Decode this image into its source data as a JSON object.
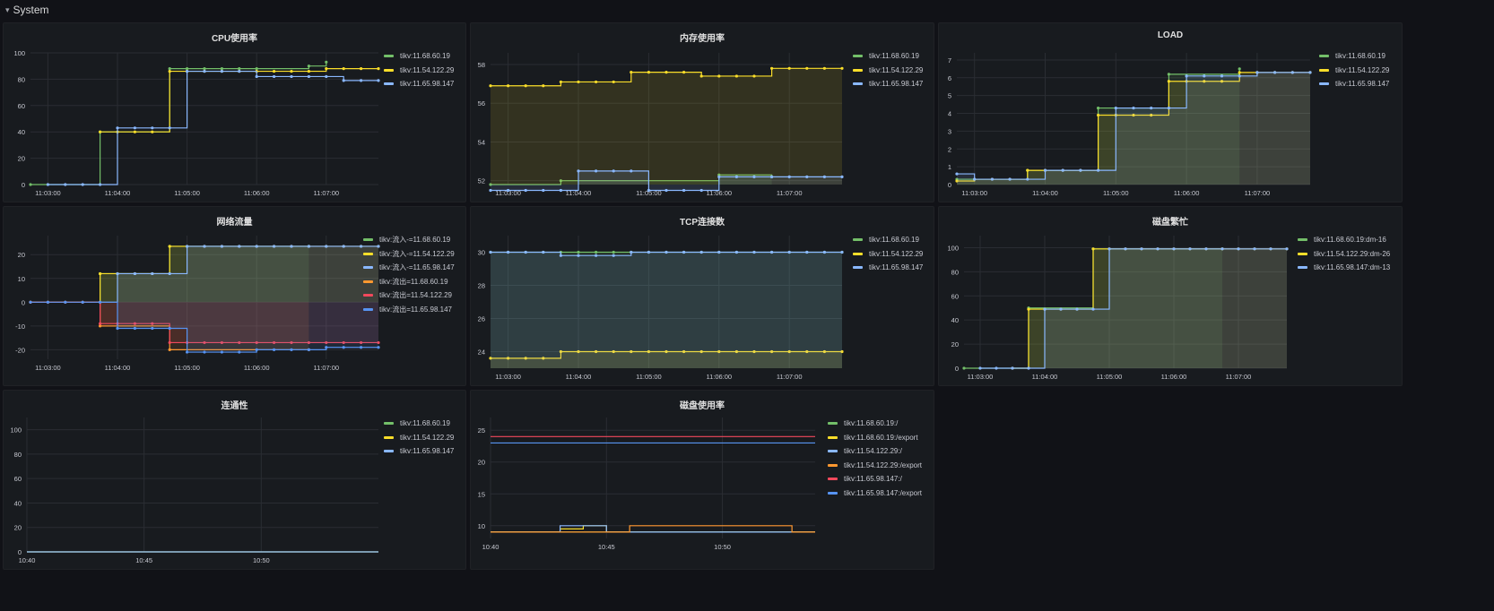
{
  "row": {
    "title": "System",
    "collapse_icon": "chevron-down-icon"
  },
  "colors": {
    "background": "#111217",
    "panel": "#181b1f",
    "grid": "#2a2d33",
    "green": "#73bf69",
    "yellow": "#fade2a",
    "blue": "#8ab8ff",
    "orange": "#ff9830",
    "red": "#f2495c",
    "blue2": "#5794f2"
  },
  "chart_data": [
    {
      "id": "cpu",
      "type": "line",
      "title": "CPU使用率",
      "x": [
        "11:02:45",
        "11:03:00",
        "11:03:15",
        "11:03:30",
        "11:03:45",
        "11:04:00",
        "11:04:15",
        "11:04:30",
        "11:04:45",
        "11:05:00",
        "11:05:15",
        "11:05:30",
        "11:05:45",
        "11:06:00",
        "11:06:15",
        "11:06:30",
        "11:06:45",
        "11:07:00",
        "11:07:15",
        "11:07:30",
        "11:07:45"
      ],
      "xticks": [
        "11:03:00",
        "11:04:00",
        "11:05:00",
        "11:06:00",
        "11:07:00"
      ],
      "ylim": [
        0,
        100
      ],
      "yticks": [
        0,
        20,
        40,
        60,
        80,
        100
      ],
      "series": [
        {
          "name": "tikv:11.68.60.19",
          "color": "green",
          "values": [
            0,
            null,
            null,
            null,
            40,
            null,
            null,
            null,
            88,
            88,
            88,
            88,
            88,
            88,
            null,
            null,
            90,
            93,
            null,
            null,
            null
          ]
        },
        {
          "name": "tikv:11.54.122.29",
          "color": "yellow",
          "values": [
            null,
            null,
            null,
            null,
            40,
            40,
            40,
            40,
            86,
            86,
            86,
            86,
            86,
            86,
            86,
            86,
            86,
            88,
            88,
            88,
            88
          ]
        },
        {
          "name": "tikv:11.65.98.147",
          "color": "blue",
          "values": [
            null,
            0,
            0,
            0,
            0,
            43,
            43,
            43,
            43,
            86,
            86,
            86,
            86,
            82,
            82,
            82,
            82,
            82,
            79,
            79,
            79
          ]
        }
      ],
      "fill": false
    },
    {
      "id": "mem",
      "type": "area",
      "title": "内存使用率",
      "x": [
        "11:02:45",
        "11:03:00",
        "11:03:15",
        "11:03:30",
        "11:03:45",
        "11:04:00",
        "11:04:15",
        "11:04:30",
        "11:04:45",
        "11:05:00",
        "11:05:15",
        "11:05:30",
        "11:05:45",
        "11:06:00",
        "11:06:15",
        "11:06:30",
        "11:06:45",
        "11:07:00",
        "11:07:15",
        "11:07:30",
        "11:07:45"
      ],
      "xticks": [
        "11:03:00",
        "11:04:00",
        "11:05:00",
        "11:06:00",
        "11:07:00"
      ],
      "ylim": [
        51.8,
        58.6
      ],
      "yticks": [
        52,
        54,
        56,
        58
      ],
      "series": [
        {
          "name": "tikv:11.68.60.19",
          "color": "green",
          "values": [
            51.8,
            null,
            null,
            null,
            52,
            null,
            null,
            null,
            null,
            null,
            null,
            null,
            null,
            52.3,
            null,
            null,
            52.2,
            null,
            null,
            null,
            null
          ]
        },
        {
          "name": "tikv:11.54.122.29",
          "color": "yellow",
          "values": [
            56.9,
            56.9,
            56.9,
            56.9,
            57.1,
            57.1,
            57.1,
            57.1,
            57.6,
            57.6,
            57.6,
            57.6,
            57.4,
            57.4,
            57.4,
            57.4,
            57.8,
            57.8,
            57.8,
            57.8,
            57.8
          ]
        },
        {
          "name": "tikv:11.65.98.147",
          "color": "blue",
          "values": [
            51.5,
            51.5,
            51.5,
            51.5,
            51.5,
            52.5,
            52.5,
            52.5,
            52.5,
            51.5,
            51.5,
            51.5,
            51.5,
            52.2,
            52.2,
            52.2,
            52.2,
            52.2,
            52.2,
            52.2,
            52.2
          ]
        }
      ],
      "fill": true
    },
    {
      "id": "load",
      "type": "area",
      "title": "LOAD",
      "x": [
        "11:02:45",
        "11:03:00",
        "11:03:15",
        "11:03:30",
        "11:03:45",
        "11:04:00",
        "11:04:15",
        "11:04:30",
        "11:04:45",
        "11:05:00",
        "11:05:15",
        "11:05:30",
        "11:05:45",
        "11:06:00",
        "11:06:15",
        "11:06:30",
        "11:06:45",
        "11:07:00",
        "11:07:15",
        "11:07:30",
        "11:07:45"
      ],
      "xticks": [
        "11:03:00",
        "11:04:00",
        "11:05:00",
        "11:06:00",
        "11:07:00"
      ],
      "ylim": [
        0,
        7.4
      ],
      "yticks": [
        0,
        1,
        2,
        3,
        4,
        5,
        6,
        7
      ],
      "series": [
        {
          "name": "tikv:11.68.60.19",
          "color": "green",
          "values": [
            0.3,
            null,
            null,
            null,
            0.8,
            null,
            null,
            null,
            4.3,
            null,
            null,
            null,
            6.2,
            null,
            null,
            null,
            6.5,
            null,
            null,
            null,
            null
          ]
        },
        {
          "name": "tikv:11.54.122.29",
          "color": "yellow",
          "values": [
            0.2,
            0.3,
            0.3,
            0.3,
            0.8,
            0.8,
            0.8,
            0.8,
            3.9,
            3.9,
            3.9,
            3.9,
            5.8,
            5.8,
            5.8,
            5.8,
            6.3,
            6.3,
            6.3,
            6.3,
            6.3
          ]
        },
        {
          "name": "tikv:11.65.98.147",
          "color": "blue",
          "values": [
            0.6,
            0.3,
            0.3,
            0.3,
            0.3,
            0.8,
            0.8,
            0.8,
            0.8,
            4.3,
            4.3,
            4.3,
            4.3,
            6.1,
            6.1,
            6.1,
            6.1,
            6.3,
            6.3,
            6.3,
            6.3
          ]
        }
      ],
      "fill": true
    },
    {
      "id": "net",
      "type": "area",
      "title": "网络流量",
      "x": [
        "11:02:45",
        "11:03:00",
        "11:03:15",
        "11:03:30",
        "11:03:45",
        "11:04:00",
        "11:04:15",
        "11:04:30",
        "11:04:45",
        "11:05:00",
        "11:05:15",
        "11:05:30",
        "11:05:45",
        "11:06:00",
        "11:06:15",
        "11:06:30",
        "11:06:45",
        "11:07:00",
        "11:07:15",
        "11:07:30",
        "11:07:45"
      ],
      "xticks": [
        "11:03:00",
        "11:04:00",
        "11:05:00",
        "11:06:00",
        "11:07:00"
      ],
      "ylim": [
        -24,
        28
      ],
      "yticks": [
        -20,
        -10,
        0,
        10,
        20
      ],
      "series": [
        {
          "name": "tikv:流入-=11.68.60.19",
          "color": "green",
          "values": [
            0,
            null,
            null,
            null,
            12,
            null,
            null,
            null,
            23.5,
            null,
            null,
            null,
            null,
            null,
            null,
            null,
            23.5,
            null,
            null,
            null,
            null
          ]
        },
        {
          "name": "tikv:流入-=11.54.122.29",
          "color": "yellow",
          "values": [
            0,
            0,
            0,
            0,
            12,
            12,
            12,
            12,
            23.5,
            23.5,
            23.5,
            23.5,
            23.5,
            23.5,
            23.5,
            23.5,
            23.5,
            23.5,
            23.5,
            23.5,
            23.5
          ]
        },
        {
          "name": "tikv:流入-=11.65.98.147",
          "color": "blue",
          "values": [
            0,
            0,
            0,
            0,
            0,
            12,
            12,
            12,
            12,
            23.5,
            23.5,
            23.5,
            23.5,
            23.5,
            23.5,
            23.5,
            23.5,
            23.5,
            23.5,
            23.5,
            23.5
          ]
        },
        {
          "name": "tikv:流出=11.68.60.19",
          "color": "orange",
          "values": [
            0,
            null,
            null,
            null,
            -10,
            null,
            null,
            null,
            -20,
            null,
            null,
            null,
            null,
            null,
            null,
            null,
            -20,
            null,
            null,
            null,
            null
          ]
        },
        {
          "name": "tikv:流出=11.54.122.29",
          "color": "red",
          "values": [
            0,
            0,
            0,
            0,
            -9,
            -9,
            -9,
            -9,
            -17,
            -17,
            -17,
            -17,
            -17,
            -17,
            -17,
            -17,
            -17,
            -17,
            -17,
            -17,
            -17
          ]
        },
        {
          "name": "tikv:流出=11.65.98.147",
          "color": "blue2",
          "values": [
            0,
            0,
            0,
            0,
            0,
            -11,
            -11,
            -11,
            -11,
            -21,
            -21,
            -21,
            -21,
            -20,
            -20,
            -20,
            -20,
            -19,
            -19,
            -19,
            -19
          ]
        }
      ],
      "fill": true
    },
    {
      "id": "tcp",
      "type": "area",
      "title": "TCP连接数",
      "x": [
        "11:02:45",
        "11:03:00",
        "11:03:15",
        "11:03:30",
        "11:03:45",
        "11:04:00",
        "11:04:15",
        "11:04:30",
        "11:04:45",
        "11:05:00",
        "11:05:15",
        "11:05:30",
        "11:05:45",
        "11:06:00",
        "11:06:15",
        "11:06:30",
        "11:06:45",
        "11:07:00",
        "11:07:15",
        "11:07:30",
        "11:07:45"
      ],
      "xticks": [
        "11:03:00",
        "11:04:00",
        "11:05:00",
        "11:06:00",
        "11:07:00"
      ],
      "ylim": [
        23,
        31
      ],
      "yticks": [
        24,
        26,
        28,
        30
      ],
      "series": [
        {
          "name": "tikv:11.68.60.19",
          "color": "green",
          "values": [
            30,
            30,
            30,
            30,
            30,
            30,
            30,
            30,
            30,
            30,
            30,
            30,
            30,
            30,
            30,
            30,
            30,
            30,
            30,
            30,
            30
          ]
        },
        {
          "name": "tikv:11.54.122.29",
          "color": "yellow",
          "values": [
            23.6,
            23.6,
            23.6,
            23.6,
            24,
            24,
            24,
            24,
            24,
            24,
            24,
            24,
            24,
            24,
            24,
            24,
            24,
            24,
            24,
            24,
            24
          ]
        },
        {
          "name": "tikv:11.65.98.147",
          "color": "blue",
          "values": [
            30,
            30,
            30,
            30,
            29.8,
            29.8,
            29.8,
            29.8,
            30,
            30,
            30,
            30,
            30,
            30,
            30,
            30,
            30,
            30,
            30,
            30,
            30
          ]
        }
      ],
      "fill": true
    },
    {
      "id": "disk_busy",
      "type": "area",
      "title": "磁盘繁忙",
      "x": [
        "11:02:45",
        "11:03:00",
        "11:03:15",
        "11:03:30",
        "11:03:45",
        "11:04:00",
        "11:04:15",
        "11:04:30",
        "11:04:45",
        "11:05:00",
        "11:05:15",
        "11:05:30",
        "11:05:45",
        "11:06:00",
        "11:06:15",
        "11:06:30",
        "11:06:45",
        "11:07:00",
        "11:07:15",
        "11:07:30",
        "11:07:45"
      ],
      "xticks": [
        "11:03:00",
        "11:04:00",
        "11:05:00",
        "11:06:00",
        "11:07:00"
      ],
      "ylim": [
        0,
        110
      ],
      "yticks": [
        0,
        20,
        40,
        60,
        80,
        100
      ],
      "series": [
        {
          "name": "tikv:11.68.60.19:dm-16",
          "color": "green",
          "values": [
            0,
            null,
            null,
            null,
            50,
            null,
            null,
            null,
            99,
            null,
            null,
            null,
            null,
            null,
            null,
            null,
            99,
            null,
            null,
            null,
            null
          ]
        },
        {
          "name": "tikv:11.54.122.29:dm-26",
          "color": "yellow",
          "values": [
            null,
            null,
            null,
            0,
            49,
            49,
            49,
            49,
            99,
            99,
            99,
            99,
            99,
            99,
            99,
            99,
            99,
            99,
            99,
            99,
            99
          ]
        },
        {
          "name": "tikv:11.65.98.147:dm-13",
          "color": "blue",
          "values": [
            null,
            0,
            0,
            0,
            0,
            49,
            49,
            49,
            49,
            99,
            99,
            99,
            99,
            99,
            99,
            99,
            99,
            99,
            99,
            99,
            99
          ]
        }
      ],
      "fill": true
    },
    {
      "id": "conn",
      "type": "line",
      "title": "连通性",
      "x": [
        "10:40",
        "10:45",
        "10:50",
        "10:55"
      ],
      "xticks": [
        "10:40",
        "10:45",
        "10:50"
      ],
      "ylim": [
        0,
        110
      ],
      "yticks": [
        0,
        20,
        40,
        60,
        80,
        100
      ],
      "series": [
        {
          "name": "tikv:11.68.60.19",
          "color": "green",
          "values": [
            0,
            0,
            0,
            0
          ]
        },
        {
          "name": "tikv:11.54.122.29",
          "color": "yellow",
          "values": [
            0,
            0,
            0,
            0
          ]
        },
        {
          "name": "tikv:11.65.98.147",
          "color": "blue",
          "values": [
            0,
            0,
            0,
            0
          ]
        }
      ],
      "fill": false
    },
    {
      "id": "disk_usage",
      "type": "line",
      "title": "磁盘使用率",
      "x": [
        "10:40",
        "10:41",
        "10:42",
        "10:43",
        "10:44",
        "10:45",
        "10:46",
        "10:47",
        "10:48",
        "10:49",
        "10:50",
        "10:51",
        "10:52",
        "10:53",
        "10:54"
      ],
      "xticks": [
        "10:40",
        "10:45",
        "10:50"
      ],
      "ylim": [
        8,
        27
      ],
      "yticks": [
        10,
        15,
        20,
        25
      ],
      "series": [
        {
          "name": "tikv:11.68.60.19:/",
          "color": "green",
          "values": [
            9,
            9,
            9,
            9,
            9,
            9,
            9,
            9,
            9,
            9,
            9,
            9,
            9,
            9,
            9
          ]
        },
        {
          "name": "tikv:11.68.60.19:/export",
          "color": "yellow",
          "values": [
            9,
            9,
            9,
            9.5,
            10,
            9,
            9,
            9,
            9,
            9,
            9,
            9,
            9,
            9,
            9
          ]
        },
        {
          "name": "tikv:11.54.122.29:/",
          "color": "blue",
          "values": [
            9,
            9,
            9,
            10,
            10,
            9,
            9,
            9,
            9,
            9,
            9,
            9,
            9,
            9,
            9
          ]
        },
        {
          "name": "tikv:11.54.122.29:/export",
          "color": "orange",
          "values": [
            9,
            9,
            9,
            9,
            9,
            9,
            10,
            10,
            10,
            10,
            10,
            10,
            10,
            9,
            9
          ]
        },
        {
          "name": "tikv:11.65.98.147:/",
          "color": "red",
          "values": [
            24,
            24,
            24,
            24,
            24,
            24,
            24,
            24,
            24,
            24,
            24,
            24,
            24,
            24,
            24
          ]
        },
        {
          "name": "tikv:11.65.98.147:/export",
          "color": "blue2",
          "values": [
            23,
            23,
            23,
            23,
            23,
            23,
            23,
            23,
            23,
            23,
            23,
            23,
            23,
            23,
            23
          ]
        }
      ],
      "fill": false
    }
  ]
}
